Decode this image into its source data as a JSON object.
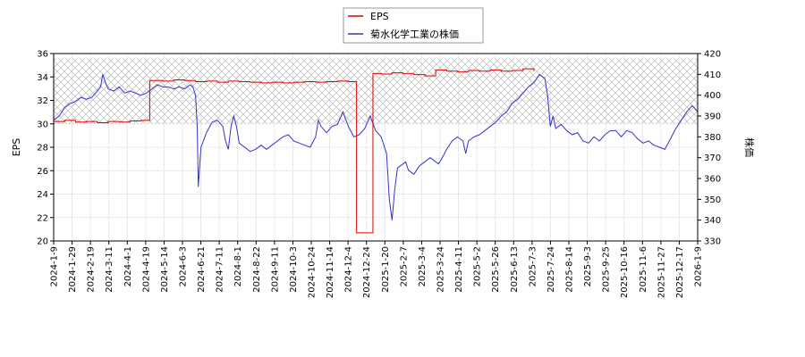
{
  "chart_data": {
    "type": "line",
    "title": "",
    "legend": {
      "placement": "top-center",
      "entries": [
        "EPS",
        "菊水化学工業の株価"
      ]
    },
    "y_left": {
      "label": "EPS",
      "ylim": [
        20,
        36
      ],
      "ticks": [
        "20",
        "22",
        "24",
        "26",
        "28",
        "30",
        "32",
        "34",
        "36"
      ]
    },
    "y_right": {
      "label": "株価",
      "ylim": [
        330,
        420
      ],
      "ticks": [
        "330",
        "340",
        "350",
        "360",
        "370",
        "380",
        "390",
        "400",
        "410",
        "420"
      ]
    },
    "x_ticks": [
      "2024-1-9",
      "2024-1-29",
      "2024-2-19",
      "2024-3-11",
      "2024-4-1",
      "2024-4-19",
      "2024-5-14",
      "2024-6-3",
      "2024-6-21",
      "2024-7-11",
      "2024-8-1",
      "2024-8-22",
      "2024-9-11",
      "2024-10-3",
      "2024-10-24",
      "2024-11-14",
      "2024-12-4",
      "2024-12-24",
      "2025-1-20",
      "2025-2-7",
      "2025-3-4",
      "2025-3-24",
      "2025-4-11",
      "2025-5-2",
      "2025-5-26",
      "2025-6-13",
      "2025-7-3",
      "2025-7-24",
      "2025-8-14",
      "2025-9-3",
      "2025-9-25",
      "2025-10-16",
      "2025-11-6",
      "2025-11-27",
      "2025-12-17",
      "2026-1-9"
    ],
    "hatch_band": {
      "from": 30,
      "to": 35.6
    },
    "grid": true,
    "series": [
      {
        "name": "EPS",
        "axis": "left",
        "color": "#dd0000",
        "step": true,
        "points": [
          [
            0,
            30.2
          ],
          [
            2,
            30.3
          ],
          [
            4,
            30.15
          ],
          [
            6,
            30.2
          ],
          [
            8,
            30.1
          ],
          [
            10,
            30.2
          ],
          [
            12,
            30.15
          ],
          [
            14,
            30.25
          ],
          [
            16,
            30.3
          ],
          [
            17.6,
            30.3
          ],
          [
            17.6,
            33.7
          ],
          [
            20,
            33.65
          ],
          [
            22,
            33.75
          ],
          [
            24,
            33.7
          ],
          [
            26,
            33.6
          ],
          [
            28,
            33.65
          ],
          [
            30,
            33.55
          ],
          [
            32,
            33.65
          ],
          [
            34,
            33.6
          ],
          [
            36,
            33.55
          ],
          [
            38,
            33.5
          ],
          [
            40,
            33.55
          ],
          [
            42,
            33.5
          ],
          [
            44,
            33.55
          ],
          [
            46,
            33.6
          ],
          [
            48,
            33.55
          ],
          [
            50,
            33.6
          ],
          [
            52,
            33.65
          ],
          [
            54,
            33.6
          ],
          [
            55.5,
            33.65
          ],
          [
            55.5,
            20.7
          ],
          [
            57,
            20.7
          ],
          [
            58.5,
            20.8
          ],
          [
            58.5,
            34.3
          ],
          [
            60,
            34.25
          ],
          [
            62,
            34.35
          ],
          [
            64,
            34.3
          ],
          [
            66,
            34.2
          ],
          [
            68,
            34.1
          ],
          [
            70,
            34.6
          ],
          [
            72,
            34.5
          ],
          [
            74,
            34.45
          ],
          [
            76,
            34.55
          ],
          [
            78,
            34.5
          ],
          [
            80,
            34.6
          ],
          [
            82,
            34.5
          ],
          [
            84,
            34.55
          ],
          [
            86,
            34.7
          ],
          [
            88,
            34.5
          ]
        ]
      },
      {
        "name": "菊水化学工業の株価",
        "axis": "right",
        "color": "#3333cc",
        "step": false,
        "points": [
          [
            0,
            388
          ],
          [
            1,
            390
          ],
          [
            2,
            394
          ],
          [
            3,
            396
          ],
          [
            4,
            397
          ],
          [
            5,
            399
          ],
          [
            6,
            398
          ],
          [
            7,
            399
          ],
          [
            8,
            402
          ],
          [
            8.6,
            404
          ],
          [
            9,
            410
          ],
          [
            9.5,
            406
          ],
          [
            10,
            403
          ],
          [
            11,
            402
          ],
          [
            12,
            404
          ],
          [
            13,
            401
          ],
          [
            14,
            402
          ],
          [
            15,
            401
          ],
          [
            16,
            400
          ],
          [
            17,
            401
          ],
          [
            18,
            403
          ],
          [
            19,
            405
          ],
          [
            20,
            404
          ],
          [
            21,
            404
          ],
          [
            22,
            403
          ],
          [
            23,
            404
          ],
          [
            24,
            403
          ],
          [
            25,
            405
          ],
          [
            25.5,
            404
          ],
          [
            26,
            400
          ],
          [
            26.3,
            385
          ],
          [
            26.5,
            356
          ],
          [
            26.8,
            368
          ],
          [
            27,
            375
          ],
          [
            28,
            382
          ],
          [
            29,
            387
          ],
          [
            30,
            388
          ],
          [
            31,
            385
          ],
          [
            31.5,
            378
          ],
          [
            32,
            374
          ],
          [
            32.5,
            385
          ],
          [
            33,
            390
          ],
          [
            33.5,
            385
          ],
          [
            34,
            377
          ],
          [
            35,
            375
          ],
          [
            36,
            373
          ],
          [
            37,
            374
          ],
          [
            38,
            376
          ],
          [
            39,
            374
          ],
          [
            40,
            376
          ],
          [
            41,
            378
          ],
          [
            42,
            380
          ],
          [
            43,
            381
          ],
          [
            44,
            378
          ],
          [
            45,
            377
          ],
          [
            46,
            376
          ],
          [
            47,
            375
          ],
          [
            48,
            380
          ],
          [
            48.5,
            388
          ],
          [
            49,
            385
          ],
          [
            50,
            382
          ],
          [
            51,
            385
          ],
          [
            52,
            386
          ],
          [
            53,
            392
          ],
          [
            54,
            385
          ],
          [
            55,
            380
          ],
          [
            56,
            381
          ],
          [
            57,
            384
          ],
          [
            58,
            390
          ],
          [
            59,
            383
          ],
          [
            60,
            380
          ],
          [
            61,
            372
          ],
          [
            61.5,
            350
          ],
          [
            62,
            340
          ],
          [
            62.5,
            355
          ],
          [
            63,
            365
          ],
          [
            64,
            367
          ],
          [
            64.5,
            368
          ],
          [
            65,
            364
          ],
          [
            66,
            362
          ],
          [
            67,
            366
          ],
          [
            68,
            368
          ],
          [
            69,
            370
          ],
          [
            70,
            368
          ],
          [
            70.5,
            367
          ],
          [
            71,
            369
          ],
          [
            72,
            374
          ],
          [
            73,
            378
          ],
          [
            74,
            380
          ],
          [
            75,
            378
          ],
          [
            75.5,
            372
          ],
          [
            76,
            378
          ],
          [
            77,
            380
          ],
          [
            78,
            381
          ],
          [
            79,
            383
          ],
          [
            80,
            385
          ],
          [
            81,
            387
          ],
          [
            82,
            390
          ],
          [
            83,
            392
          ],
          [
            84,
            396
          ],
          [
            85,
            398
          ],
          [
            86,
            401
          ],
          [
            87,
            404
          ],
          [
            88,
            406
          ],
          [
            89,
            410
          ],
          [
            90,
            408
          ],
          [
            90.5,
            400
          ],
          [
            91,
            385
          ],
          [
            91.5,
            390
          ],
          [
            92,
            384
          ],
          [
            93,
            386
          ],
          [
            94,
            383
          ],
          [
            95,
            381
          ],
          [
            96,
            382
          ],
          [
            97,
            378
          ],
          [
            98,
            377
          ],
          [
            99,
            380
          ],
          [
            100,
            378
          ],
          [
            101,
            381
          ],
          [
            102,
            383
          ],
          [
            103,
            383
          ],
          [
            104,
            380
          ],
          [
            105,
            383
          ],
          [
            106,
            382
          ],
          [
            107,
            379
          ],
          [
            108,
            377
          ],
          [
            109,
            378
          ],
          [
            110,
            376
          ],
          [
            111,
            375
          ],
          [
            112,
            374
          ],
          [
            113,
            379
          ],
          [
            114,
            384
          ],
          [
            115,
            388
          ],
          [
            116,
            392
          ],
          [
            117,
            395
          ],
          [
            118,
            392
          ]
        ]
      }
    ]
  }
}
